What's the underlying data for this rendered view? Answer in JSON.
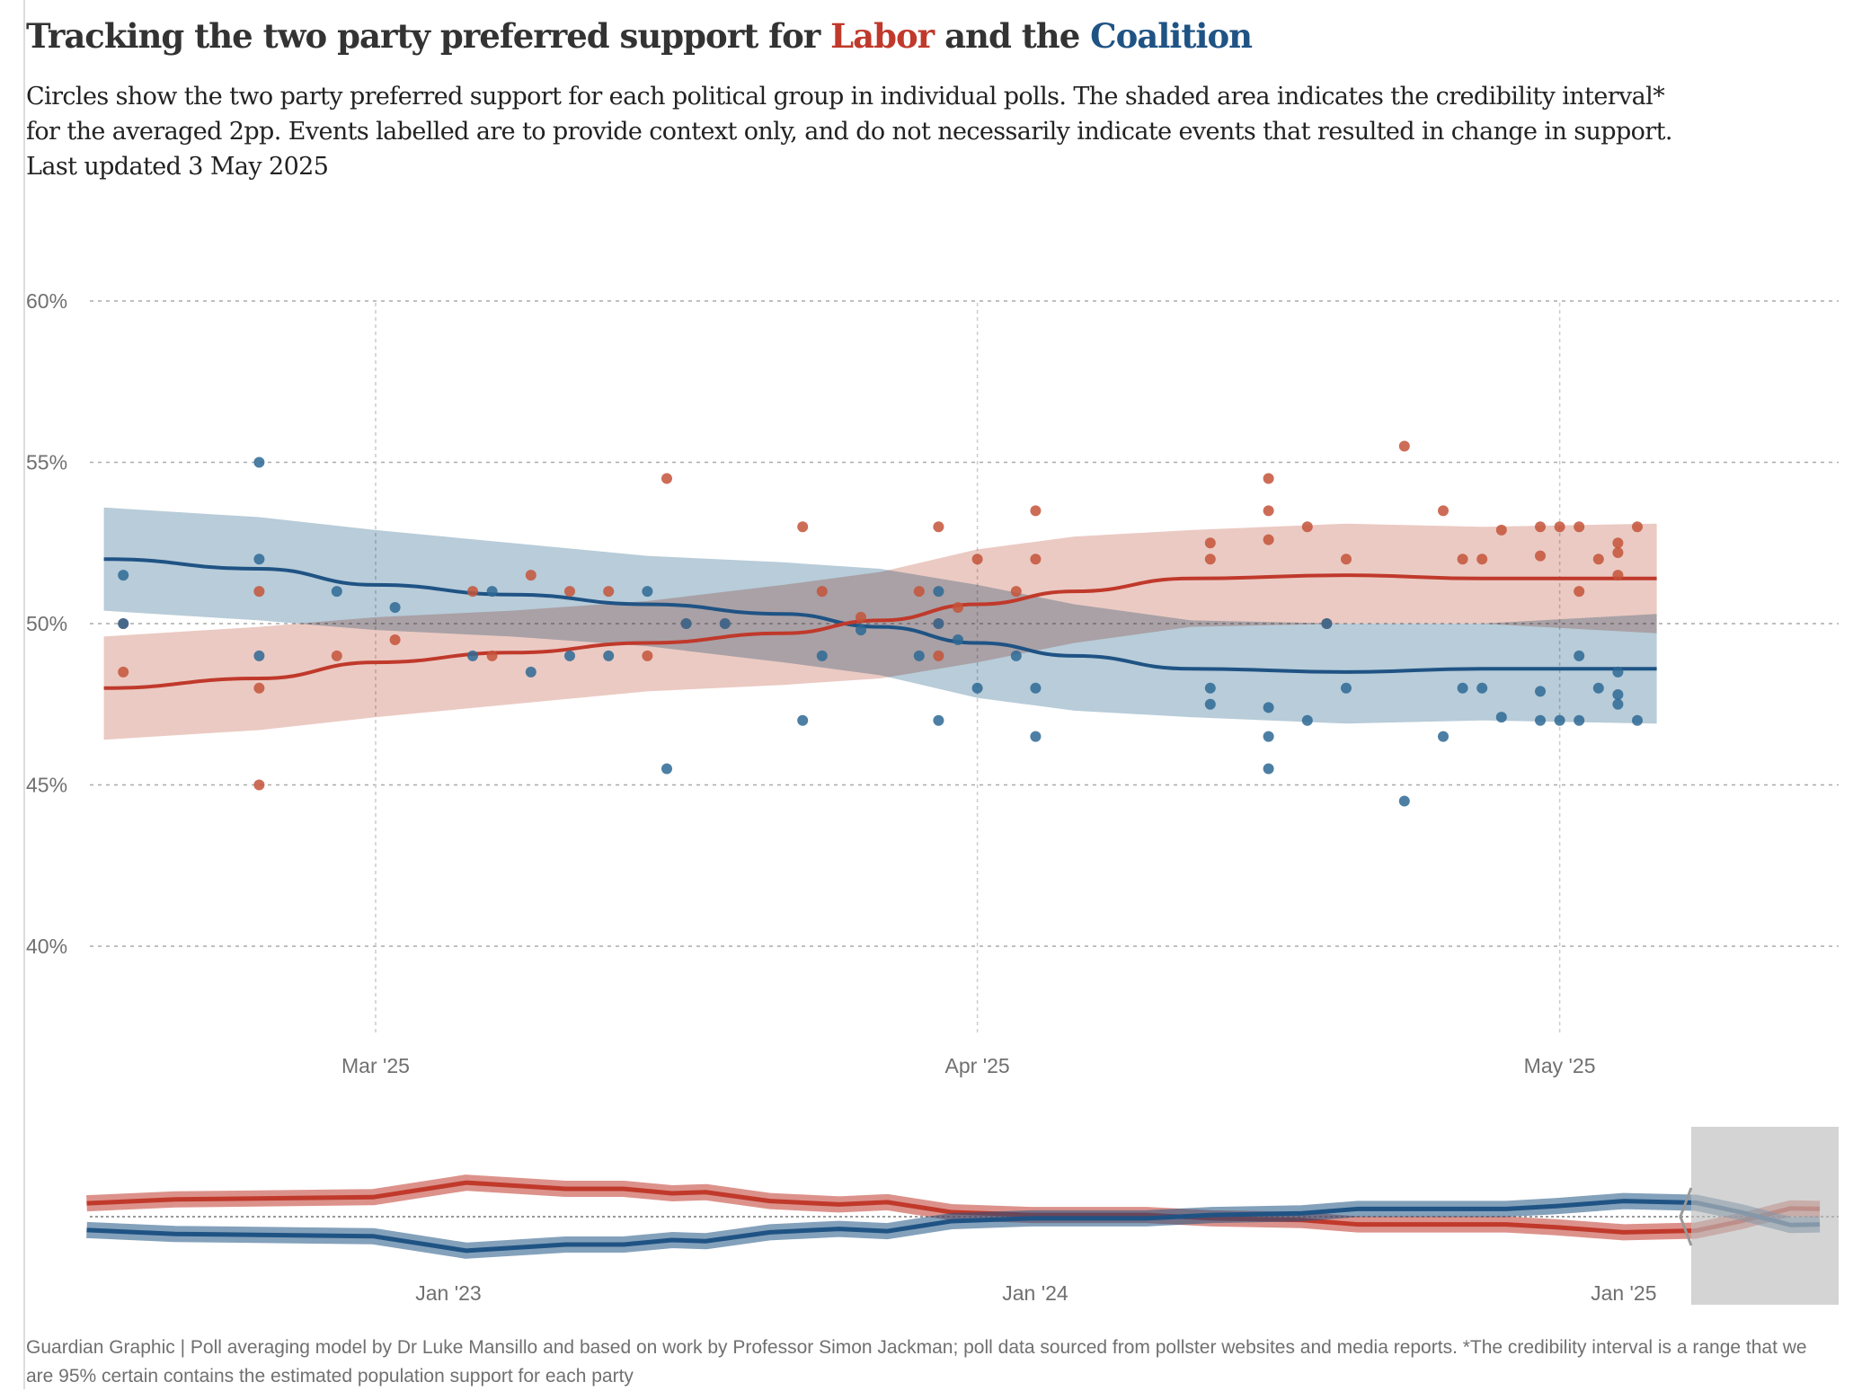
{
  "header": {
    "title_prefix": "Tracking the two party preferred support for ",
    "title_labor": "Labor",
    "title_mid": " and the ",
    "title_coalition": "Coalition",
    "subtitle_lines": [
      "Circles show the two party preferred support for each political group in individual polls. The shaded area indicates the credibility interval*",
      "for the averaged 2pp. Events labelled are to provide context only, and do not necessarily indicate events that resulted in change in support.",
      "Last updated 3 May 2025"
    ]
  },
  "footer": "Guardian Graphic | Poll averaging model by Dr Luke Mansillo and based on work by Professor Simon Jackman; poll data sourced from pollster websites and media reports. *The credibility interval is a range that we are 95% certain contains the estimated population support for each party",
  "chart_data": [
    {
      "type": "scatter+line+area",
      "colors": {
        "labor": "#c0392b",
        "coalition": "#1f5384",
        "labor_dot": "#c4533a",
        "coalition_dot": "#2e6894",
        "labor_band": "#e8c1b8",
        "coalition_band": "#b8ccd9"
      },
      "ylim": [
        37,
        61
      ],
      "y_ticks": [
        {
          "v": 60,
          "label": "60%"
        },
        {
          "v": 55,
          "label": "55%"
        },
        {
          "v": 50,
          "label": "50%"
        },
        {
          "v": 45,
          "label": "45%"
        },
        {
          "v": 40,
          "label": "40%"
        }
      ],
      "x_ticks": [
        {
          "date": "2025-03-01",
          "label": "Mar '25"
        },
        {
          "date": "2025-04-01",
          "label": "Apr '25"
        },
        {
          "date": "2025-05-01",
          "label": "May '25"
        }
      ],
      "xlim": [
        "2025-02-12",
        "2025-05-13"
      ],
      "grid": true,
      "polls": [
        [
          "2025-02-16",
          48.5,
          51.5
        ],
        [
          "2025-02-16",
          50,
          50
        ],
        [
          "2025-02-23",
          45,
          55
        ],
        [
          "2025-02-23",
          48,
          52
        ],
        [
          "2025-02-23",
          51,
          49
        ],
        [
          "2025-02-27",
          49,
          51
        ],
        [
          "2025-03-02",
          49.5,
          50.5
        ],
        [
          "2025-03-06",
          51,
          49
        ],
        [
          "2025-03-07",
          49,
          51
        ],
        [
          "2025-03-09",
          51.5,
          48.5
        ],
        [
          "2025-03-11",
          51,
          49
        ],
        [
          "2025-03-13",
          51,
          49
        ],
        [
          "2025-03-15",
          49,
          51
        ],
        [
          "2025-03-16",
          54.5,
          45.5
        ],
        [
          "2025-03-17",
          50,
          50
        ],
        [
          "2025-03-19",
          50,
          50
        ],
        [
          "2025-03-23",
          53,
          47
        ],
        [
          "2025-03-24",
          51,
          49
        ],
        [
          "2025-03-26",
          50.2,
          49.8
        ],
        [
          "2025-03-29",
          51,
          49
        ],
        [
          "2025-03-30",
          53,
          47
        ],
        [
          "2025-03-30",
          49,
          51
        ],
        [
          "2025-03-30",
          50,
          50
        ],
        [
          "2025-03-31",
          50.5,
          49.5
        ],
        [
          "2025-04-01",
          52,
          48
        ],
        [
          "2025-04-03",
          51,
          49
        ],
        [
          "2025-04-04",
          53.5,
          46.5
        ],
        [
          "2025-04-04",
          52,
          48
        ],
        [
          "2025-04-13",
          52.5,
          47.5
        ],
        [
          "2025-04-13",
          52,
          48
        ],
        [
          "2025-04-16",
          54.5,
          45.5
        ],
        [
          "2025-04-16",
          53.5,
          46.5
        ],
        [
          "2025-04-16",
          52.6,
          47.4
        ],
        [
          "2025-04-18",
          53,
          47
        ],
        [
          "2025-04-19",
          50,
          50
        ],
        [
          "2025-04-20",
          52,
          48
        ],
        [
          "2025-04-23",
          55.5,
          44.5
        ],
        [
          "2025-04-25",
          53.5,
          46.5
        ],
        [
          "2025-04-26",
          52,
          48
        ],
        [
          "2025-04-27",
          52,
          48
        ],
        [
          "2025-04-28",
          52.9,
          47.1
        ],
        [
          "2025-04-30",
          53,
          47
        ],
        [
          "2025-04-30",
          52.1,
          47.9
        ],
        [
          "2025-05-01",
          53,
          47
        ],
        [
          "2025-05-02",
          53,
          47
        ],
        [
          "2025-05-02",
          51,
          49
        ],
        [
          "2025-05-03",
          52,
          48
        ],
        [
          "2025-05-04",
          52.5,
          47.5
        ],
        [
          "2025-05-04",
          52.2,
          47.8
        ],
        [
          "2025-05-04",
          51.5,
          48.5
        ],
        [
          "2025-05-05",
          53,
          47
        ]
      ],
      "series": [
        {
          "name": "Labor",
          "trend": [
            [
              "2025-02-15",
              48.0,
              46.4,
              49.6
            ],
            [
              "2025-02-23",
              48.3,
              46.7,
              49.9
            ],
            [
              "2025-03-01",
              48.8,
              47.1,
              50.2
            ],
            [
              "2025-03-08",
              49.1,
              47.5,
              50.4
            ],
            [
              "2025-03-15",
              49.4,
              47.9,
              50.7
            ],
            [
              "2025-03-22",
              49.7,
              48.1,
              51.2
            ],
            [
              "2025-03-27",
              50.1,
              48.3,
              51.6
            ],
            [
              "2025-04-01",
              50.6,
              48.8,
              52.3
            ],
            [
              "2025-04-06",
              51.0,
              49.4,
              52.7
            ],
            [
              "2025-04-12",
              51.4,
              49.9,
              52.9
            ],
            [
              "2025-04-20",
              51.5,
              50.0,
              53.1
            ],
            [
              "2025-04-27",
              51.4,
              50.0,
              53.0
            ],
            [
              "2025-05-06",
              51.4,
              49.7,
              53.1
            ]
          ]
        },
        {
          "name": "Coalition",
          "trend": [
            [
              "2025-02-15",
              52.0,
              50.4,
              53.6
            ],
            [
              "2025-02-23",
              51.7,
              50.1,
              53.3
            ],
            [
              "2025-03-01",
              51.2,
              49.8,
              52.9
            ],
            [
              "2025-03-08",
              50.9,
              49.6,
              52.5
            ],
            [
              "2025-03-15",
              50.6,
              49.3,
              52.1
            ],
            [
              "2025-03-22",
              50.3,
              48.8,
              51.9
            ],
            [
              "2025-03-27",
              49.9,
              48.4,
              51.7
            ],
            [
              "2025-04-01",
              49.4,
              47.7,
              51.2
            ],
            [
              "2025-04-06",
              49.0,
              47.3,
              50.6
            ],
            [
              "2025-04-12",
              48.6,
              47.1,
              50.1
            ],
            [
              "2025-04-20",
              48.5,
              46.9,
              50.0
            ],
            [
              "2025-04-27",
              48.6,
              47.0,
              50.0
            ],
            [
              "2025-05-06",
              48.6,
              46.9,
              50.3
            ]
          ]
        }
      ]
    },
    {
      "type": "line",
      "role": "overview-brush",
      "x_ticks": [
        {
          "date": "2023-01-01",
          "label": "Jan '23"
        },
        {
          "date": "2024-01-01",
          "label": "Jan '24"
        },
        {
          "date": "2025-01-01",
          "label": "Jan '25"
        }
      ],
      "brush": [
        "2025-02-12",
        "2025-05-13"
      ],
      "series": [
        {
          "name": "Labor",
          "values": [
            [
              "2022-05-21",
              52.4
            ],
            [
              "2022-07-15",
              53.1
            ],
            [
              "2022-11-15",
              53.5
            ],
            [
              "2023-01-12",
              56.1
            ],
            [
              "2023-03-15",
              55.0
            ],
            [
              "2023-04-20",
              55.0
            ],
            [
              "2023-05-20",
              54.2
            ],
            [
              "2023-06-10",
              54.4
            ],
            [
              "2023-07-20",
              52.8
            ],
            [
              "2023-09-01",
              52.2
            ],
            [
              "2023-10-01",
              52.6
            ],
            [
              "2023-11-10",
              50.8
            ],
            [
              "2023-12-30",
              50.3
            ],
            [
              "2024-03-10",
              50.3
            ],
            [
              "2024-04-20",
              49.7
            ],
            [
              "2024-06-15",
              49.4
            ],
            [
              "2024-07-20",
              48.6
            ],
            [
              "2024-10-20",
              48.6
            ],
            [
              "2024-11-20",
              48.1
            ],
            [
              "2025-01-01",
              47.2
            ],
            [
              "2025-02-15",
              47.5
            ],
            [
              "2025-03-15",
              49.2
            ],
            [
              "2025-04-15",
              51.5
            ],
            [
              "2025-05-03",
              51.4
            ]
          ]
        },
        {
          "name": "Coalition",
          "values": [
            [
              "2022-05-21",
              47.6
            ],
            [
              "2022-07-15",
              46.9
            ],
            [
              "2022-11-15",
              46.5
            ],
            [
              "2023-01-12",
              43.9
            ],
            [
              "2023-03-15",
              45.0
            ],
            [
              "2023-04-20",
              45.0
            ],
            [
              "2023-05-20",
              45.8
            ],
            [
              "2023-06-10",
              45.6
            ],
            [
              "2023-07-20",
              47.2
            ],
            [
              "2023-09-01",
              47.8
            ],
            [
              "2023-10-01",
              47.4
            ],
            [
              "2023-11-10",
              49.2
            ],
            [
              "2023-12-30",
              49.7
            ],
            [
              "2024-03-10",
              49.7
            ],
            [
              "2024-04-20",
              50.3
            ],
            [
              "2024-06-15",
              50.6
            ],
            [
              "2024-07-20",
              51.4
            ],
            [
              "2024-10-20",
              51.4
            ],
            [
              "2024-11-20",
              51.9
            ],
            [
              "2025-01-01",
              52.8
            ],
            [
              "2025-02-15",
              52.5
            ],
            [
              "2025-03-15",
              50.8
            ],
            [
              "2025-04-15",
              48.5
            ],
            [
              "2025-05-03",
              48.6
            ]
          ]
        }
      ]
    }
  ]
}
